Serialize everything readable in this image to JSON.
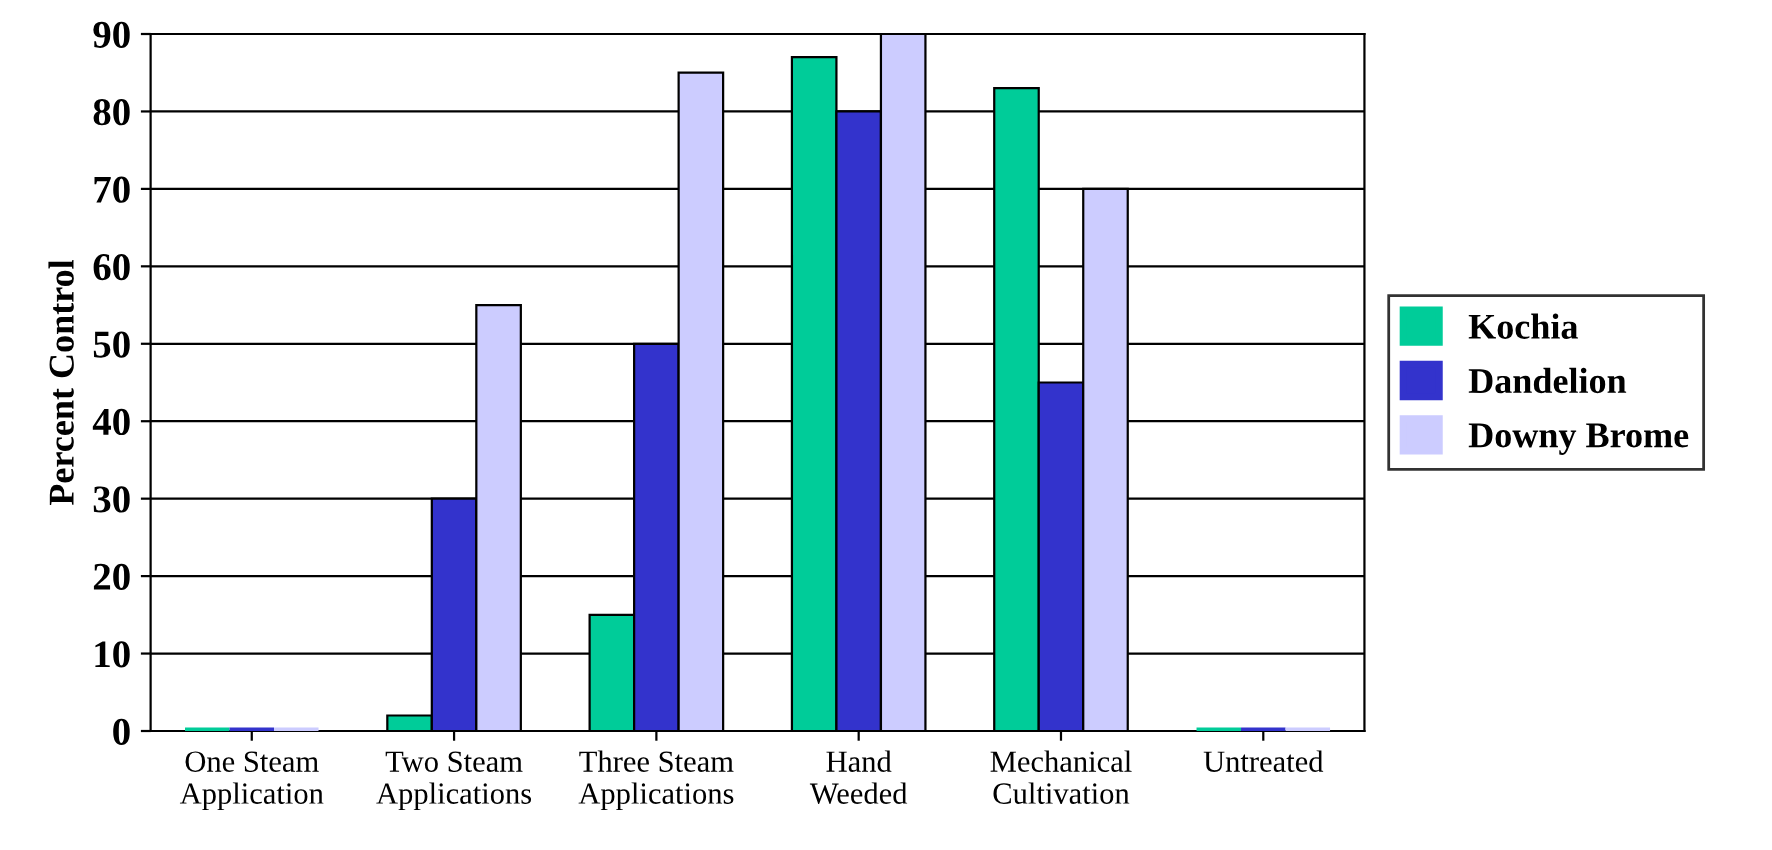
{
  "chart_data": {
    "type": "bar",
    "ylabel": "Percent Control",
    "categories": [
      "One Steam\nApplication",
      "Two Steam\nApplications",
      "Three Steam\nApplications",
      "Hand\nWeeded",
      "Mechanical\nCultivation",
      "Untreated"
    ],
    "series": [
      {
        "name": "Kochia",
        "color": "#00cc99",
        "values": [
          0,
          2,
          15,
          87,
          83,
          0
        ]
      },
      {
        "name": "Dandelion",
        "color": "#3333cc",
        "values": [
          0,
          30,
          50,
          80,
          45,
          0
        ]
      },
      {
        "name": "Downy Brome",
        "color": "#ccccff",
        "values": [
          0,
          55,
          85,
          90,
          70,
          0
        ]
      }
    ],
    "ylim": [
      0,
      90
    ],
    "yticks": [
      0,
      10,
      20,
      30,
      40,
      50,
      60,
      70,
      80,
      90
    ],
    "grid": "y",
    "legend": "right"
  }
}
